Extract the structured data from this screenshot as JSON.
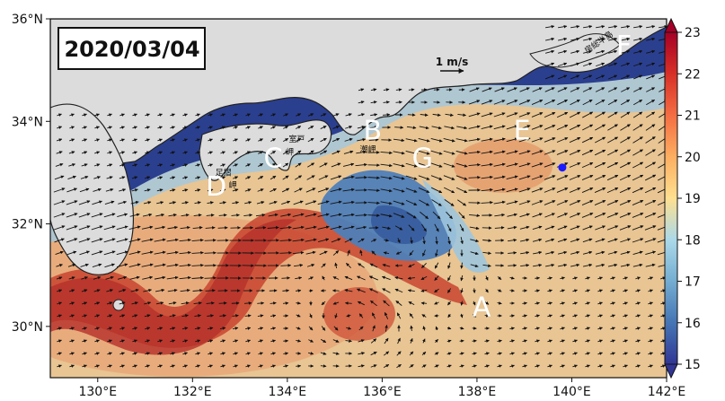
{
  "date": "2020/03/04",
  "scale_label": "1 m/s",
  "colors": {
    "land": "#dcdcdc",
    "deep_blue": "#2b3f8f",
    "kuroshio_red": "#c8442f",
    "point_marker": "#1a1aff"
  },
  "map": {
    "lon_range": [
      129,
      142
    ],
    "lat_range": [
      29,
      36
    ],
    "lon_ticks": [
      {
        "value": 130,
        "label": "130°E"
      },
      {
        "value": 132,
        "label": "132°E"
      },
      {
        "value": 134,
        "label": "134°E"
      },
      {
        "value": 136,
        "label": "136°E"
      },
      {
        "value": 138,
        "label": "138°E"
      },
      {
        "value": 140,
        "label": "140°E"
      },
      {
        "value": 142,
        "label": "142°E"
      }
    ],
    "lat_ticks": [
      {
        "value": 30,
        "label": "30°N"
      },
      {
        "value": 32,
        "label": "32°N"
      },
      {
        "value": 34,
        "label": "34°N"
      },
      {
        "value": 36,
        "label": "36°N"
      }
    ],
    "region_labels": [
      {
        "text": "A",
        "lon": 138.1,
        "lat": 30.2
      },
      {
        "text": "B",
        "lon": 135.8,
        "lat": 33.65
      },
      {
        "text": "C",
        "lon": 133.7,
        "lat": 33.1
      },
      {
        "text": "D",
        "lon": 132.5,
        "lat": 32.55
      },
      {
        "text": "E",
        "lon": 138.95,
        "lat": 33.65
      },
      {
        "text": "F",
        "lon": 141.1,
        "lat": 35.3
      },
      {
        "text": "G",
        "lon": 136.85,
        "lat": 33.1
      }
    ],
    "place_labels": [
      {
        "text": "室戸",
        "lon": 134.2,
        "lat": 33.6
      },
      {
        "text": "岬",
        "lon": 134.05,
        "lat": 33.35
      },
      {
        "text": "足摺",
        "lon": 132.65,
        "lat": 32.95
      },
      {
        "text": "岬",
        "lon": 132.85,
        "lat": 32.7
      },
      {
        "text": "潮岬",
        "lon": 135.7,
        "lat": 33.4
      },
      {
        "text": "房総半島",
        "lon": 140.6,
        "lat": 35.5
      }
    ],
    "point_marker": {
      "lon": 139.8,
      "lat": 33.1
    }
  },
  "colorbar": {
    "min": 15,
    "max": 23,
    "ticks": [
      15,
      16,
      17,
      18,
      19,
      20,
      21,
      22,
      23
    ]
  }
}
